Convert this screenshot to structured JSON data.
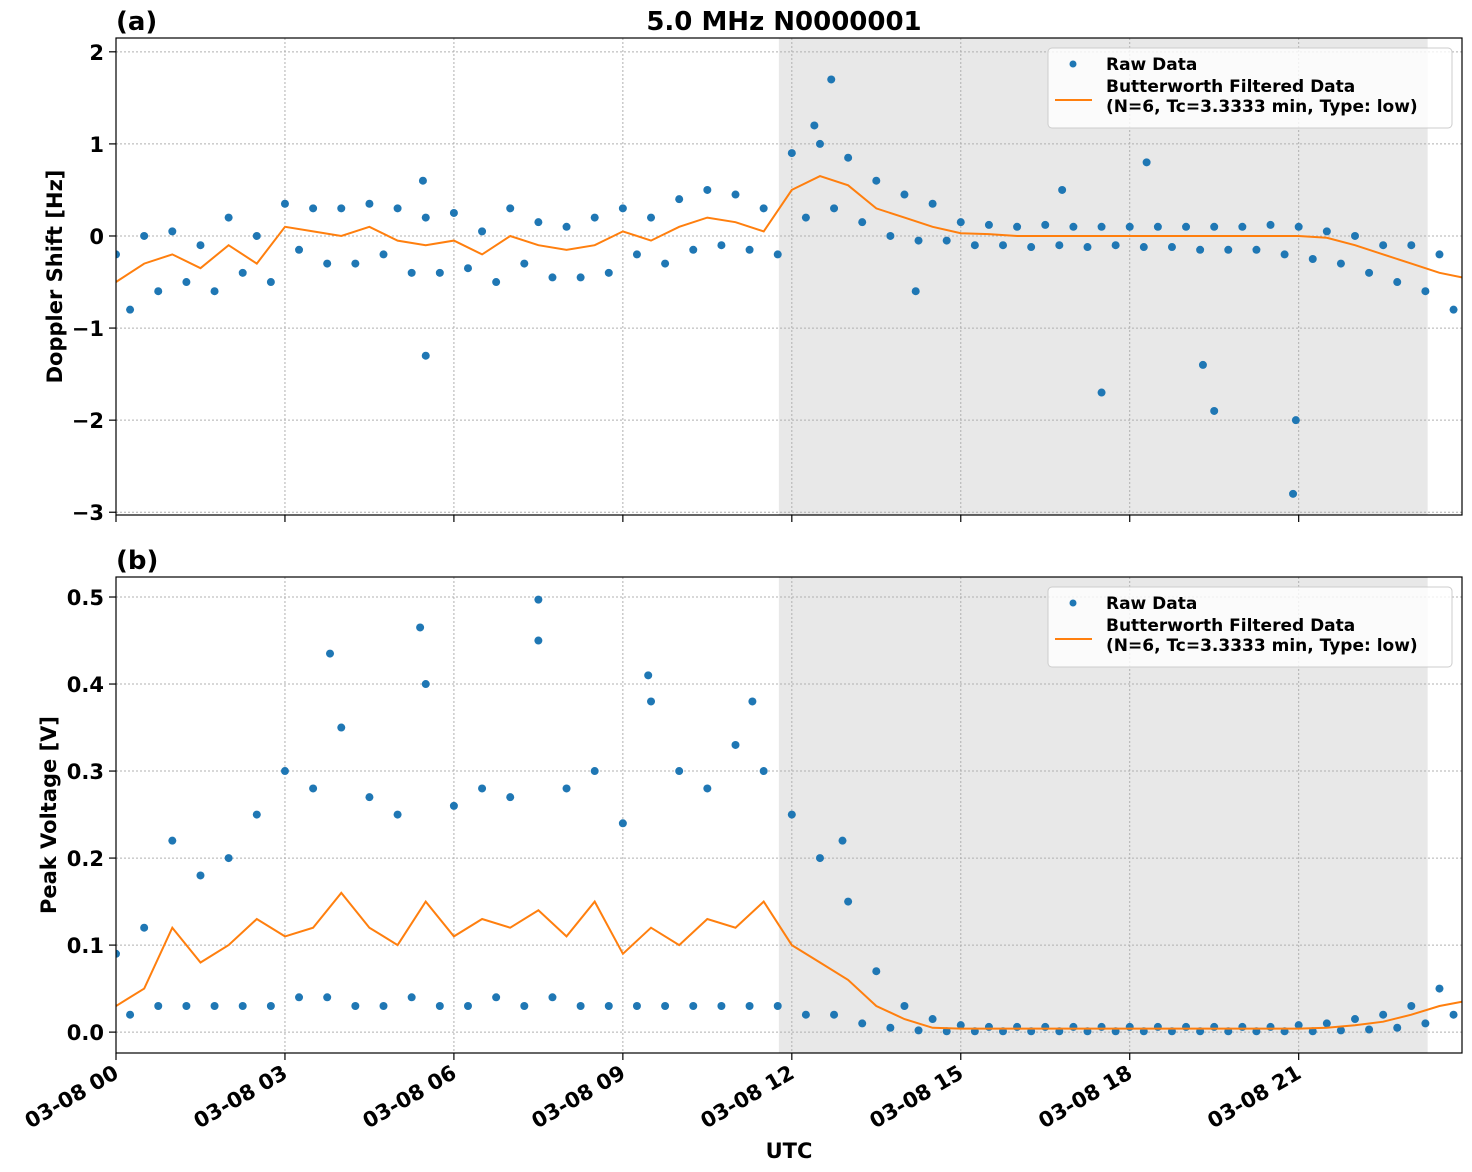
{
  "chart_data": [
    {
      "type": "scatter",
      "title": "5.0 MHz N0000001",
      "panel_label": "(a)",
      "ylabel": "Doppler Shift [Hz]",
      "xlim": [
        0,
        23.9
      ],
      "ylim": [
        -3.03,
        2.15
      ],
      "yticks": [
        {
          "value": -3,
          "label": "−3"
        },
        {
          "value": -2,
          "label": "−2"
        },
        {
          "value": -1,
          "label": "−1"
        },
        0,
        1,
        2
      ],
      "grid": true,
      "legend": "upper right",
      "shade": {
        "xlim": [
          11.77,
          23.29
        ],
        "color": "#e8e8e8"
      },
      "series": [
        {
          "name": "Raw Data",
          "color": "#1f77b4",
          "marker": "dot",
          "x": [
            0,
            0.25,
            0.5,
            0.75,
            1,
            1.25,
            1.5,
            1.75,
            2,
            2.25,
            2.5,
            2.75,
            3,
            3.25,
            3.5,
            3.75,
            4,
            4.25,
            4.5,
            4.75,
            5,
            5.25,
            5.5,
            5.75,
            6,
            6.25,
            6.5,
            6.75,
            7,
            7.25,
            7.5,
            7.75,
            8,
            8.25,
            8.5,
            8.75,
            9,
            9.25,
            9.5,
            9.75,
            10,
            10.25,
            10.5,
            10.75,
            11,
            11.25,
            11.5,
            11.75,
            12,
            12.25,
            12.5,
            12.75,
            13,
            13.25,
            13.5,
            13.75,
            14,
            14.25,
            14.5,
            14.75,
            15,
            15.25,
            15.5,
            15.75,
            16,
            16.25,
            16.5,
            16.75,
            17,
            17.25,
            17.5,
            17.75,
            18,
            18.25,
            18.5,
            18.75,
            19,
            19.25,
            19.5,
            19.75,
            20,
            20.25,
            20.5,
            20.75,
            21,
            21.25,
            21.5,
            21.75,
            22,
            22.25,
            22.5,
            22.75,
            23,
            23.25,
            23.5,
            23.75,
            5.5,
            5.45,
            12.7,
            12.4,
            17.5,
            19.5,
            20.9,
            20.95,
            16.8,
            18.3,
            19.3,
            14.2
          ],
          "values": [
            -0.2,
            -0.8,
            0.0,
            -0.6,
            0.05,
            -0.5,
            -0.1,
            -0.6,
            0.2,
            -0.4,
            0.0,
            -0.5,
            0.35,
            -0.15,
            0.3,
            -0.3,
            0.3,
            -0.3,
            0.35,
            -0.2,
            0.3,
            -0.4,
            0.2,
            -0.4,
            0.25,
            -0.35,
            0.05,
            -0.5,
            0.3,
            -0.3,
            0.15,
            -0.45,
            0.1,
            -0.45,
            0.2,
            -0.4,
            0.3,
            -0.2,
            0.2,
            -0.3,
            0.4,
            -0.15,
            0.5,
            -0.1,
            0.45,
            -0.15,
            0.3,
            -0.2,
            0.9,
            0.2,
            1.0,
            0.3,
            0.85,
            0.15,
            0.6,
            0.0,
            0.45,
            -0.05,
            0.35,
            -0.05,
            0.15,
            -0.1,
            0.12,
            -0.1,
            0.1,
            -0.12,
            0.12,
            -0.1,
            0.1,
            -0.12,
            0.1,
            -0.1,
            0.1,
            -0.12,
            0.1,
            -0.12,
            0.1,
            -0.15,
            0.1,
            -0.15,
            0.1,
            -0.15,
            0.12,
            -0.2,
            0.1,
            -0.25,
            0.05,
            -0.3,
            0.0,
            -0.4,
            -0.1,
            -0.5,
            -0.1,
            -0.6,
            -0.2,
            -0.8,
            -1.3,
            0.6,
            1.7,
            1.2,
            -1.7,
            -1.9,
            -2.8,
            -2.0,
            0.5,
            0.8,
            -1.4,
            -0.6
          ]
        },
        {
          "name": "Butterworth Filtered Data\n(N=6, Tc=3.3333 min, Type: low)",
          "color": "#ff7f0e",
          "marker": "line",
          "x": [
            0,
            0.5,
            1,
            1.5,
            2,
            2.5,
            3,
            3.5,
            4,
            4.5,
            5,
            5.5,
            6,
            6.5,
            7,
            7.5,
            8,
            8.5,
            9,
            9.5,
            10,
            10.5,
            11,
            11.5,
            12,
            12.5,
            13,
            13.5,
            14,
            14.5,
            15,
            15.5,
            16,
            16.5,
            17,
            17.5,
            18,
            18.5,
            19,
            19.5,
            20,
            20.5,
            21,
            21.5,
            22,
            22.5,
            23,
            23.5,
            23.9
          ],
          "values": [
            -0.5,
            -0.3,
            -0.2,
            -0.35,
            -0.1,
            -0.3,
            0.1,
            0.05,
            0.0,
            0.1,
            -0.05,
            -0.1,
            -0.05,
            -0.2,
            0.0,
            -0.1,
            -0.15,
            -0.1,
            0.05,
            -0.05,
            0.1,
            0.2,
            0.15,
            0.05,
            0.5,
            0.65,
            0.55,
            0.3,
            0.2,
            0.1,
            0.03,
            0.02,
            0.0,
            0.0,
            0.0,
            0.0,
            0.0,
            0.0,
            0.0,
            0.0,
            0.0,
            0.0,
            0.0,
            -0.02,
            -0.1,
            -0.2,
            -0.3,
            -0.4,
            -0.45
          ]
        }
      ]
    },
    {
      "type": "scatter",
      "panel_label": "(b)",
      "ylabel": "Peak Voltage [V]",
      "xlabel": "UTC",
      "xlim": [
        0,
        23.9
      ],
      "ylim": [
        -0.024,
        0.523
      ],
      "xticks": [
        {
          "value": 0,
          "label": "03-08 00"
        },
        {
          "value": 3,
          "label": "03-08 03"
        },
        {
          "value": 6,
          "label": "03-08 06"
        },
        {
          "value": 9,
          "label": "03-08 09"
        },
        {
          "value": 12,
          "label": "03-08 12"
        },
        {
          "value": 15,
          "label": "03-08 15"
        },
        {
          "value": 18,
          "label": "03-08 18"
        },
        {
          "value": 21,
          "label": "03-08 21"
        }
      ],
      "yticks": [
        {
          "value": 0,
          "label": "0.0"
        },
        0.1,
        0.2,
        0.3,
        0.4,
        0.5
      ],
      "grid": true,
      "legend": "upper right",
      "shade": {
        "xlim": [
          11.77,
          23.29
        ],
        "color": "#e8e8e8"
      },
      "series": [
        {
          "name": "Raw Data",
          "color": "#1f77b4",
          "marker": "dot",
          "x": [
            0,
            0.25,
            0.5,
            0.75,
            1,
            1.25,
            1.5,
            1.75,
            2,
            2.25,
            2.5,
            2.75,
            3,
            3.25,
            3.5,
            3.75,
            4,
            4.25,
            4.5,
            4.75,
            5,
            5.25,
            5.5,
            5.75,
            6,
            6.25,
            6.5,
            6.75,
            7,
            7.25,
            7.5,
            7.75,
            8,
            8.25,
            8.5,
            8.75,
            9,
            9.25,
            9.5,
            9.75,
            10,
            10.25,
            10.5,
            10.75,
            11,
            11.25,
            11.5,
            11.75,
            12,
            12.25,
            12.5,
            12.75,
            13,
            13.25,
            13.5,
            13.75,
            14,
            14.25,
            14.5,
            14.75,
            15,
            15.25,
            15.5,
            15.75,
            16,
            16.25,
            16.5,
            16.75,
            17,
            17.25,
            17.5,
            17.75,
            18,
            18.25,
            18.5,
            18.75,
            19,
            19.25,
            19.5,
            19.75,
            20,
            20.25,
            20.5,
            20.75,
            21,
            21.25,
            21.5,
            21.75,
            22,
            22.25,
            22.5,
            22.75,
            23,
            23.25,
            23.5,
            23.75,
            7.5,
            3.8,
            5.4,
            9.45,
            12.9,
            11.3
          ],
          "values": [
            0.09,
            0.02,
            0.12,
            0.03,
            0.22,
            0.03,
            0.18,
            0.03,
            0.2,
            0.03,
            0.25,
            0.03,
            0.3,
            0.04,
            0.28,
            0.04,
            0.35,
            0.03,
            0.27,
            0.03,
            0.25,
            0.04,
            0.4,
            0.03,
            0.26,
            0.03,
            0.28,
            0.04,
            0.27,
            0.03,
            0.45,
            0.04,
            0.28,
            0.03,
            0.3,
            0.03,
            0.24,
            0.03,
            0.38,
            0.03,
            0.3,
            0.03,
            0.28,
            0.03,
            0.33,
            0.03,
            0.3,
            0.03,
            0.25,
            0.02,
            0.2,
            0.02,
            0.15,
            0.01,
            0.07,
            0.005,
            0.03,
            0.002,
            0.015,
            0.001,
            0.008,
            0.001,
            0.006,
            0.001,
            0.006,
            0.001,
            0.006,
            0.001,
            0.006,
            0.001,
            0.006,
            0.001,
            0.006,
            0.001,
            0.006,
            0.001,
            0.006,
            0.001,
            0.006,
            0.001,
            0.006,
            0.001,
            0.006,
            0.001,
            0.008,
            0.001,
            0.01,
            0.002,
            0.015,
            0.003,
            0.02,
            0.005,
            0.03,
            0.01,
            0.05,
            0.02,
            0.497,
            0.435,
            0.465,
            0.41,
            0.22,
            0.38
          ]
        },
        {
          "name": "Butterworth Filtered Data\n(N=6, Tc=3.3333 min, Type: low)",
          "color": "#ff7f0e",
          "marker": "line",
          "x": [
            0,
            0.5,
            1,
            1.5,
            2,
            2.5,
            3,
            3.5,
            4,
            4.5,
            5,
            5.5,
            6,
            6.5,
            7,
            7.5,
            8,
            8.5,
            9,
            9.5,
            10,
            10.5,
            11,
            11.5,
            12,
            12.5,
            13,
            13.5,
            14,
            14.5,
            15,
            15.5,
            16,
            16.5,
            17,
            17.5,
            18,
            18.5,
            19,
            19.5,
            20,
            20.5,
            21,
            21.5,
            22,
            22.5,
            23,
            23.5,
            23.9
          ],
          "values": [
            0.03,
            0.05,
            0.12,
            0.08,
            0.1,
            0.13,
            0.11,
            0.12,
            0.16,
            0.12,
            0.1,
            0.15,
            0.11,
            0.13,
            0.12,
            0.14,
            0.11,
            0.15,
            0.09,
            0.12,
            0.1,
            0.13,
            0.12,
            0.15,
            0.1,
            0.08,
            0.06,
            0.03,
            0.015,
            0.005,
            0.004,
            0.004,
            0.004,
            0.004,
            0.004,
            0.004,
            0.004,
            0.004,
            0.004,
            0.004,
            0.004,
            0.004,
            0.004,
            0.005,
            0.008,
            0.012,
            0.02,
            0.03,
            0.035
          ]
        }
      ]
    }
  ]
}
